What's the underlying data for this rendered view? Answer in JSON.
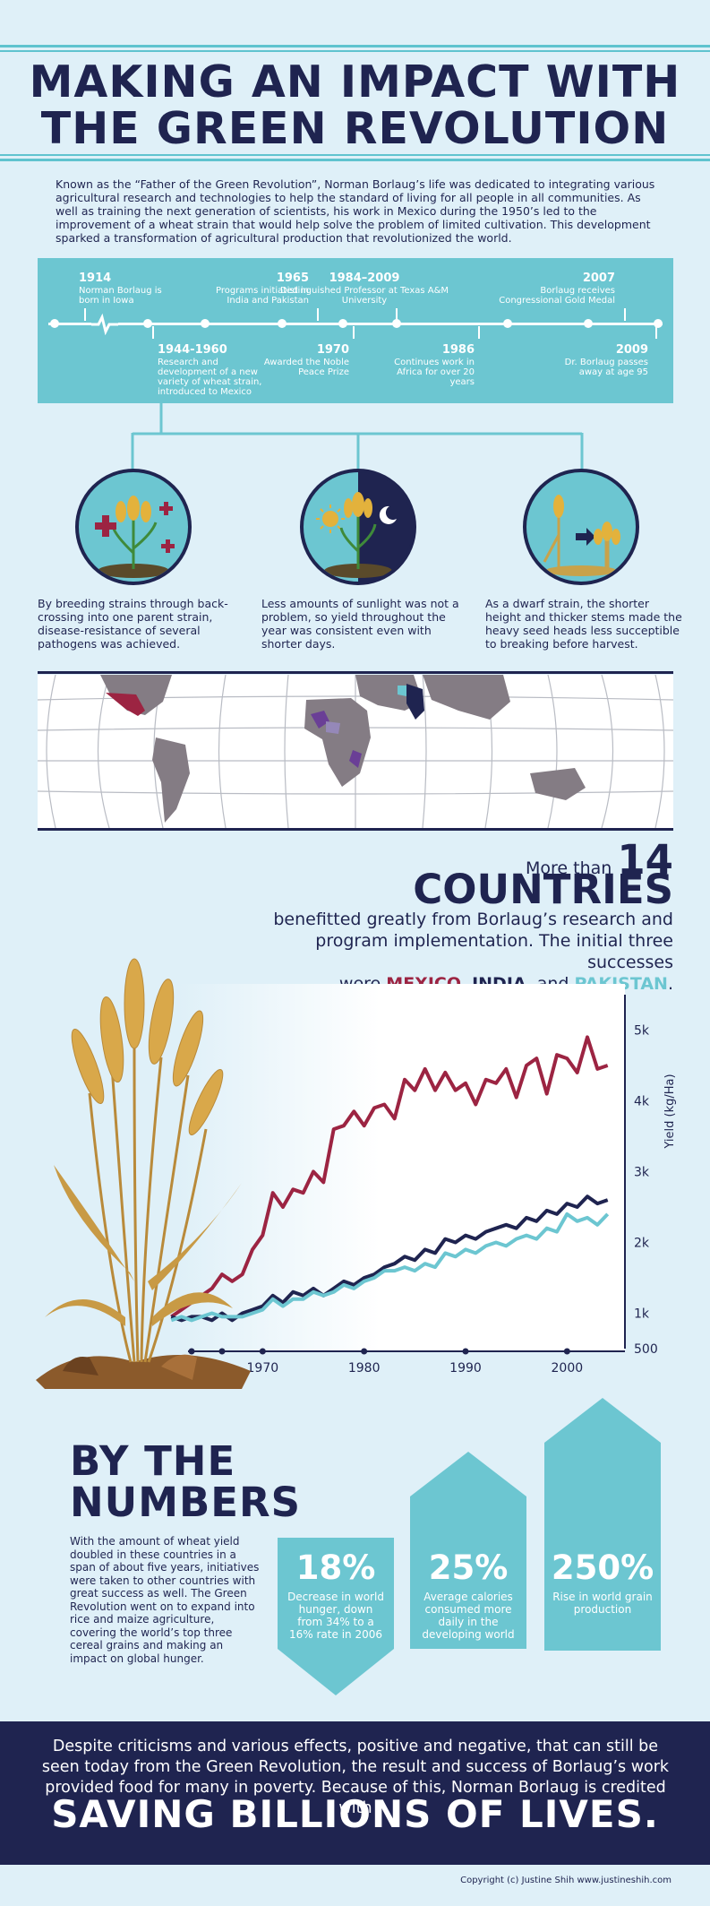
{
  "header": {
    "title_line1": "MAKING AN IMPACT WITH",
    "title_line2": "THE GREEN REVOLUTION"
  },
  "intro": "Known as the “Father of the Green Revolution”, Norman Borlaug’s life was dedicated to integrating various agricultural research and technologies to help the standard of living for all people in all communities. As well as training the next generation of scientists, his work in Mexico during the 1950’s led to the improvement of a wheat strain that would help solve the problem of limited cultivation. This development sparked a transformation of agricultural production that revolutionized the world.",
  "timeline": {
    "top": [
      {
        "year": "1914",
        "text": "Norman Borlaug is born in Iowa"
      },
      {
        "year": "1965",
        "text": "Programs initiated in India and Pakistan"
      },
      {
        "year": "1984–2009",
        "text": "Distinguished Professor at Texas A&M University"
      },
      {
        "year": "2007",
        "text": "Borlaug receives Congressional Gold Medal"
      }
    ],
    "bottom": [
      {
        "year": "1944-1960",
        "text": "Research and development of a new variety of wheat strain, introduced to Mexico"
      },
      {
        "year": "1970",
        "text": "Awarded the Noble Peace Prize"
      },
      {
        "year": "1986",
        "text": "Continues work in Africa for over 20 years"
      },
      {
        "year": "2009",
        "text": "Dr. Borlaug passes away at age 95"
      }
    ]
  },
  "benefits": [
    {
      "icon": "disease-resistant-wheat-icon",
      "text": "By breeding strains through back-crossing into one parent strain, disease-resistance of several pathogens was achieved."
    },
    {
      "icon": "day-night-wheat-icon",
      "text": "Less amounts of sunlight was not a problem, so yield throughout the year was consistent even with shorter days."
    },
    {
      "icon": "dwarf-wheat-icon",
      "text": "As a dwarf strain, the shorter height and thicker stems made the heavy seed heads less succeptible to breaking before harvest."
    }
  ],
  "countries": {
    "prefix": "More than",
    "number": "14 COUNTRIES",
    "line2": "benefitted greatly from Borlaug’s research and",
    "line3": "program implementation. The initial three successes",
    "were": "were",
    "mexico": "MEXICO",
    "comma1": ",",
    "india": "INDIA",
    "and": ", and",
    "pakistan": "PAKISTAN",
    "period": "."
  },
  "colors": {
    "navy": "#1f2450",
    "teal": "#6cc6d1",
    "crimson": "#9c2442",
    "purple": "#6a3f96",
    "background": "#dff0f8"
  },
  "chart_data": {
    "type": "line",
    "title": "",
    "xlabel": "",
    "ylabel": "Yield (kg/Ha)",
    "xlim": [
      1960,
      2005
    ],
    "ylim": [
      500,
      5500
    ],
    "x_ticks": [
      "1970",
      "1980",
      "1990",
      "2000"
    ],
    "y_ticks": [
      "500",
      "1k",
      "2k",
      "3k",
      "4k",
      "5k"
    ],
    "x": [
      1961,
      1962,
      1963,
      1964,
      1965,
      1966,
      1967,
      1968,
      1969,
      1970,
      1971,
      1972,
      1973,
      1974,
      1975,
      1976,
      1977,
      1978,
      1979,
      1980,
      1981,
      1982,
      1983,
      1984,
      1985,
      1986,
      1987,
      1988,
      1989,
      1990,
      1991,
      1992,
      1993,
      1994,
      1995,
      1996,
      1997,
      1998,
      1999,
      2000,
      2001,
      2002,
      2003,
      2004
    ],
    "series": [
      {
        "color": "#9c2442",
        "values": [
          950,
          1050,
          1150,
          1250,
          1350,
          1550,
          1450,
          1550,
          1900,
          2100,
          2700,
          2500,
          2750,
          2700,
          3000,
          2850,
          3600,
          3650,
          3850,
          3650,
          3900,
          3950,
          3750,
          4300,
          4150,
          4450,
          4150,
          4400,
          4150,
          4250,
          3950,
          4300,
          4250,
          4450,
          4050,
          4500,
          4600,
          4100,
          4650,
          4600,
          4400,
          4900,
          4450,
          4500
        ]
      },
      {
        "color": "#1f2450",
        "values": [
          950,
          900,
          950,
          950,
          900,
          1000,
          900,
          1000,
          1050,
          1100,
          1250,
          1150,
          1300,
          1250,
          1350,
          1250,
          1350,
          1450,
          1400,
          1500,
          1550,
          1650,
          1700,
          1800,
          1750,
          1900,
          1850,
          2050,
          2000,
          2100,
          2050,
          2150,
          2200,
          2250,
          2200,
          2350,
          2300,
          2450,
          2400,
          2550,
          2500,
          2650,
          2550,
          2600
        ]
      },
      {
        "color": "#6cc6d1",
        "values": [
          900,
          950,
          900,
          950,
          1000,
          950,
          950,
          950,
          1000,
          1050,
          1200,
          1100,
          1200,
          1200,
          1300,
          1250,
          1300,
          1400,
          1350,
          1450,
          1500,
          1600,
          1600,
          1650,
          1600,
          1700,
          1650,
          1850,
          1800,
          1900,
          1850,
          1950,
          2000,
          1950,
          2050,
          2100,
          2050,
          2200,
          2150,
          2400,
          2300,
          2350,
          2250,
          2400
        ]
      }
    ]
  },
  "numbers": {
    "heading_line1": "BY THE",
    "heading_line2": "NUMBERS",
    "text": "With the amount of wheat yield doubled in these countries in a span of about five years, initiatives were taken to other countries with great success as well. The Green Revolution went on to expand into rice and maize agriculture, covering the world’s top three cereal grains and making an impact on global hunger.",
    "stats": [
      {
        "value": "18%",
        "label": "Decrease in world hunger, down from 34% to a 16% rate in 2006"
      },
      {
        "value": "25%",
        "label": "Average calories consumed more daily in the developing world"
      },
      {
        "value": "250%",
        "label": "Rise in world grain production"
      }
    ]
  },
  "footer": {
    "text": "Despite criticisms and various effects, positive and negative, that can still be seen today from the Green Revolution, the result and success of Borlaug’s work provided food for many in poverty. Because of this, Norman Borlaug is credited with",
    "headline": "SAVING BILLIONS OF LIVES."
  },
  "copyright": "Copyright (c) Justine Shih www.justineshih.com"
}
